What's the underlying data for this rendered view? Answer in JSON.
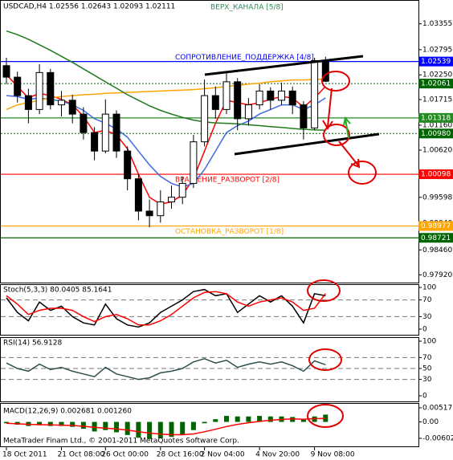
{
  "chart_data": [
    {
      "type": "candlestick",
      "title": "USDCAD,H4  1.02556 1.02643 1.02093 1.02111",
      "categories": [
        "18 Oct 2011",
        null,
        null,
        null,
        null,
        "21 Oct 08:00",
        null,
        null,
        null,
        "26 Oct 00:00",
        null,
        null,
        null,
        null,
        "28 Oct 16:00",
        null,
        null,
        null,
        "2 Nov 04:00",
        null,
        null,
        null,
        null,
        "4 Nov 20:00",
        null,
        null,
        null,
        null,
        "9 Nov 08:00",
        null
      ],
      "open": [
        1.0245,
        1.022,
        1.018,
        1.015,
        1.023,
        1.016,
        1.017,
        1.014,
        1.01,
        1.006,
        1.014,
        1.006,
        1.0,
        0.993,
        0.992,
        0.995,
        0.996,
        0.999,
        1.008,
        1.018,
        1.015,
        1.021,
        1.013,
        1.016,
        1.019,
        1.017,
        1.019,
        1.016,
        1.011,
        1.02556
      ],
      "high": [
        1.0262,
        1.0232,
        1.0195,
        1.0248,
        1.0238,
        1.019,
        1.0182,
        1.0155,
        1.0112,
        1.0172,
        1.0148,
        1.007,
        1.001,
        0.9955,
        0.9975,
        0.9985,
        1.0005,
        1.0095,
        1.0215,
        1.02,
        1.0228,
        1.0218,
        1.0175,
        1.0205,
        1.0198,
        1.0208,
        1.02,
        1.0168,
        1.0262,
        1.02643
      ],
      "low": [
        1.0205,
        1.0165,
        1.012,
        1.014,
        1.015,
        1.0135,
        1.012,
        1.0085,
        1.004,
        1.0055,
        1.0045,
        0.9975,
        0.991,
        0.9895,
        0.9905,
        0.9935,
        0.9945,
        0.998,
        1.007,
        1.013,
        1.014,
        1.0105,
        1.0115,
        1.015,
        1.015,
        1.016,
        1.014,
        1.0085,
        1.0105,
        1.02093
      ],
      "close": [
        1.022,
        1.018,
        1.015,
        1.023,
        1.016,
        1.017,
        1.014,
        1.01,
        1.006,
        1.014,
        1.006,
        1.0,
        0.993,
        0.992,
        0.995,
        0.996,
        0.999,
        1.008,
        1.018,
        1.015,
        1.021,
        1.013,
        1.016,
        1.019,
        1.017,
        1.019,
        1.016,
        1.011,
        1.0256,
        1.02111
      ],
      "up_color": "#ffffff",
      "down_color": "#000000",
      "series": [
        {
          "color": "#ff0000",
          "values": [
            1.0225,
            1.02,
            1.0175,
            1.0185,
            1.018,
            1.0172,
            1.016,
            1.0135,
            1.01,
            1.0105,
            1.0095,
            1.0065,
            1.001,
            0.996,
            0.9945,
            0.995,
            0.9965,
            1.0,
            1.006,
            1.012,
            1.017,
            1.0165,
            1.016,
            1.0165,
            1.0172,
            1.0178,
            1.0175,
            1.0155,
            1.0175,
            1.02
          ]
        },
        {
          "color": "#4169e1",
          "values": [
            1.018,
            1.0178,
            1.0172,
            1.0175,
            1.0172,
            1.0168,
            1.016,
            1.0148,
            1.013,
            1.012,
            1.0108,
            1.009,
            1.006,
            1.003,
            1.0005,
            0.999,
            0.9982,
            0.999,
            1.002,
            1.006,
            1.01,
            1.0115,
            1.0125,
            1.014,
            1.015,
            1.016,
            1.016,
            1.015,
            1.016,
            1.0175
          ]
        },
        {
          "color": "#ffa500",
          "values": [
            1.015,
            1.016,
            1.0165,
            1.017,
            1.0175,
            1.0178,
            1.018,
            1.0182,
            1.0183,
            1.0185,
            1.0186,
            1.0187,
            1.0188,
            1.0189,
            1.019,
            1.0191,
            1.0192,
            1.0193,
            1.0195,
            1.0197,
            1.02,
            1.0202,
            1.0205,
            1.0207,
            1.021,
            1.0212,
            1.0214,
            1.0214,
            1.0215,
            1.0216
          ]
        },
        {
          "color": "#1f7a1f",
          "values": [
            1.032,
            1.0312,
            1.0302,
            1.029,
            1.0278,
            1.0265,
            1.0252,
            1.0238,
            1.0224,
            1.021,
            1.0196,
            1.0182,
            1.017,
            1.0158,
            1.0148,
            1.014,
            1.0133,
            1.0127,
            1.0123,
            1.0121,
            1.012,
            1.0119,
            1.0117,
            1.0115,
            1.0113,
            1.0111,
            1.0109,
            1.0107,
            1.0106,
            1.0105
          ]
        }
      ],
      "ylim": [
        0.97752,
        1.03836
      ],
      "yticks": [
        1.03355,
        1.02795,
        {
          "value": 1.0225,
          "label": "1.02250"
        },
        1.01715,
        {
          "value": 1.0116,
          "label": "1.01160"
        },
        {
          "value": 1.0062,
          "label": "1.00620"
        },
        0.99598,
        {
          "value": 0.9904,
          "label": "0.99040"
        },
        {
          "value": 0.9846,
          "label": "0.98460"
        },
        {
          "value": 0.9792,
          "label": "0.97920"
        }
      ],
      "levels": [
        {
          "value": 1.02539,
          "color": "#0000ff",
          "style": "solid",
          "name": "СОПРОТИВЛЕНИЕ_ПОДДЕРЖКА [4/8]"
        },
        {
          "value": 1.02061,
          "color": "#006400",
          "style": "dotted"
        },
        {
          "value": 1.01318,
          "color": "#228b22",
          "style": "solid"
        },
        {
          "value": 1.0098,
          "label": "1.00980",
          "color": "#006400",
          "style": "dotted"
        },
        {
          "value": 1.00098,
          "color": "#ff0000",
          "style": "solid",
          "name": "ВРАЩЕНИЕ_РАЗВОРОТ [2/8]"
        },
        {
          "value": 0.98977,
          "color": "#ffa500",
          "style": "solid",
          "name": "ОСТАНОВКА_РАЗВОРОТ [1/8]"
        },
        {
          "value": 0.98721,
          "color": "#006400",
          "style": "solid"
        }
      ],
      "annotations": [
        "ВЕРХ_КАНАЛА [5/8]"
      ],
      "grid": false
    },
    {
      "type": "line",
      "title": "Stoch(5,3,3) 80.0405 85.1641",
      "series": [
        {
          "color": "#000000",
          "values": [
            75,
            40,
            20,
            65,
            45,
            55,
            30,
            15,
            10,
            60,
            25,
            10,
            5,
            15,
            40,
            55,
            70,
            90,
            95,
            80,
            85,
            40,
            60,
            80,
            65,
            80,
            55,
            15,
            85,
            80.0405
          ]
        },
        {
          "color": "#ff0000",
          "values": [
            80,
            60,
            35,
            45,
            50,
            50,
            45,
            30,
            18,
            30,
            35,
            25,
            10,
            10,
            20,
            35,
            55,
            75,
            88,
            90,
            85,
            65,
            55,
            65,
            70,
            75,
            65,
            45,
            50,
            85.1641
          ]
        }
      ],
      "ylim": [
        0,
        100
      ],
      "yticks": [
        100,
        70,
        30,
        0
      ],
      "levels": [
        70,
        30
      ],
      "grid": false
    },
    {
      "type": "line",
      "title": "RSI(14) 56.9128",
      "series": [
        {
          "color": "#2f4f4f",
          "values": [
            60,
            50,
            45,
            58,
            48,
            52,
            45,
            40,
            35,
            52,
            40,
            35,
            30,
            33,
            42,
            45,
            50,
            62,
            68,
            60,
            65,
            52,
            58,
            62,
            58,
            62,
            55,
            45,
            64,
            56.9128
          ]
        }
      ],
      "ylim": [
        0,
        100
      ],
      "yticks": [
        100,
        70,
        50,
        30,
        0
      ],
      "levels": [
        70,
        50,
        30
      ],
      "grid": false
    },
    {
      "type": "macd",
      "title": "MACD(12,26,9) 0.002681 0.001260",
      "series": [
        {
          "kind": "bar",
          "color": "#006400",
          "values": [
            -0.0005,
            -0.001,
            -0.0015,
            -0.0012,
            -0.0015,
            -0.0015,
            -0.0018,
            -0.0025,
            -0.0035,
            -0.003,
            -0.0038,
            -0.0048,
            -0.0058,
            -0.0062,
            -0.006,
            -0.0055,
            -0.0048,
            -0.003,
            -0.0005,
            0.001,
            0.0022,
            0.002,
            0.002,
            0.0022,
            0.002,
            0.002,
            0.0018,
            0.0008,
            0.002,
            0.002681
          ]
        },
        {
          "kind": "line",
          "color": "#ff0000",
          "values": [
            -0.0005,
            -0.0007,
            -0.0009,
            -0.001,
            -0.0011,
            -0.0012,
            -0.0013,
            -0.0016,
            -0.002,
            -0.0023,
            -0.0026,
            -0.003,
            -0.0036,
            -0.0041,
            -0.0045,
            -0.0047,
            -0.0047,
            -0.0044,
            -0.0036,
            -0.0027,
            -0.0017,
            -0.0009,
            -0.0003,
            0.0002,
            0.0006,
            0.0009,
            0.0011,
            0.001,
            0.0012,
            0.00126
          ]
        }
      ],
      "ylim": [
        -0.00602,
        0.005171
      ],
      "yticks": [
        0.005171,
        {
          "value": 0,
          "label": "0.00"
        },
        -0.00602
      ],
      "grid": false,
      "footer": "MetaTrader Finam Ltd., © 2001-2011 MetaQuotes Software Corp."
    }
  ]
}
